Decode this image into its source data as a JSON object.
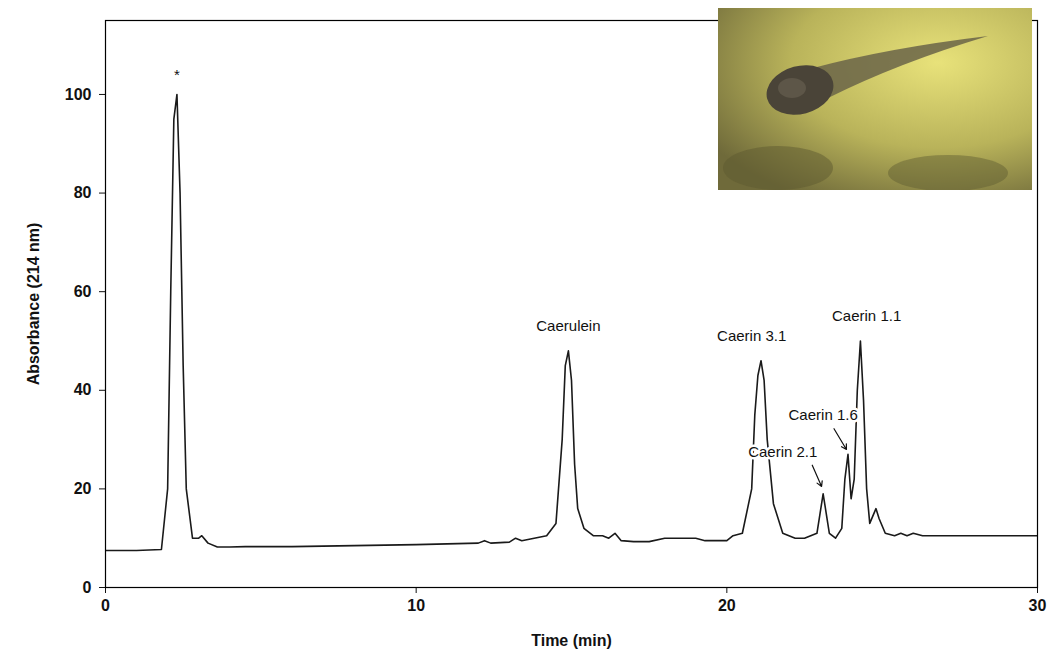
{
  "chart_data": {
    "type": "line",
    "x_label": "Time (min)",
    "y_label": "Absorbance (214 nm)",
    "color": "#1a1a1a",
    "xlim": [
      0,
      30
    ],
    "xticks": [
      0,
      10,
      20,
      30
    ],
    "ylim": [
      0,
      115
    ],
    "yticks": [
      0,
      20,
      40,
      60,
      80,
      100
    ],
    "x": [
      0,
      1,
      1.8,
      2.0,
      2.1,
      2.2,
      2.3,
      2.4,
      2.5,
      2.6,
      2.8,
      3.0,
      3.1,
      3.3,
      3.6,
      4,
      4.5,
      6,
      8,
      10,
      12,
      12.2,
      12.4,
      13,
      13.2,
      13.4,
      13.8,
      14.2,
      14.5,
      14.7,
      14.8,
      14.9,
      15.0,
      15.1,
      15.2,
      15.4,
      15.7,
      16,
      16.2,
      16.4,
      16.6,
      17,
      17.5,
      18,
      19,
      19.3,
      20,
      20.2,
      20.5,
      20.8,
      20.9,
      21.0,
      21.1,
      21.2,
      21.3,
      21.5,
      21.8,
      22.2,
      22.5,
      22.9,
      23.0,
      23.1,
      23.2,
      23.3,
      23.5,
      23.7,
      23.8,
      23.9,
      24.0,
      24.1,
      24.2,
      24.3,
      24.4,
      24.5,
      24.6,
      24.8,
      24.9,
      25.1,
      25.4,
      25.6,
      25.8,
      26,
      26.3,
      27,
      28,
      29,
      30
    ],
    "values": [
      7.5,
      7.5,
      7.7,
      20,
      60,
      95,
      100,
      80,
      45,
      20,
      10,
      10,
      10.5,
      9,
      8.2,
      8.2,
      8.3,
      8.3,
      8.5,
      8.7,
      9,
      9.5,
      9,
      9.2,
      10,
      9.5,
      10,
      10.5,
      13,
      30,
      45,
      48,
      42,
      25,
      16,
      12,
      10.5,
      10.5,
      10,
      11,
      9.5,
      9.3,
      9.3,
      10,
      10,
      9.5,
      9.5,
      10.5,
      11,
      20,
      35,
      43,
      46,
      42,
      30,
      17,
      11,
      10,
      10,
      11,
      15,
      19,
      15,
      11,
      10,
      12,
      22,
      27,
      18,
      22,
      40,
      50,
      38,
      20,
      13,
      16,
      14,
      11,
      10.5,
      11,
      10.5,
      11,
      10.5,
      10.5,
      10.5,
      10.5,
      10.5
    ],
    "annotations": [
      {
        "text": "*",
        "x": 2.3,
        "y": 104
      },
      {
        "text": "Caerulein",
        "x": 14.9,
        "y": 53
      },
      {
        "text": "Caerin 3.1",
        "x": 20.8,
        "y": 51
      },
      {
        "text": "Caerin 1.1",
        "x": 24.5,
        "y": 55
      },
      {
        "text": "Caerin 1.6",
        "x": 23.1,
        "y": 35,
        "arrow_from": [
          23.45,
          32.2
        ],
        "arrow_to": [
          23.85,
          28
        ]
      },
      {
        "text": "Caerin 2.1",
        "x": 21.8,
        "y": 27.5,
        "arrow_from": [
          22.75,
          24.8
        ],
        "arrow_to": [
          23.05,
          20.5
        ]
      }
    ]
  }
}
